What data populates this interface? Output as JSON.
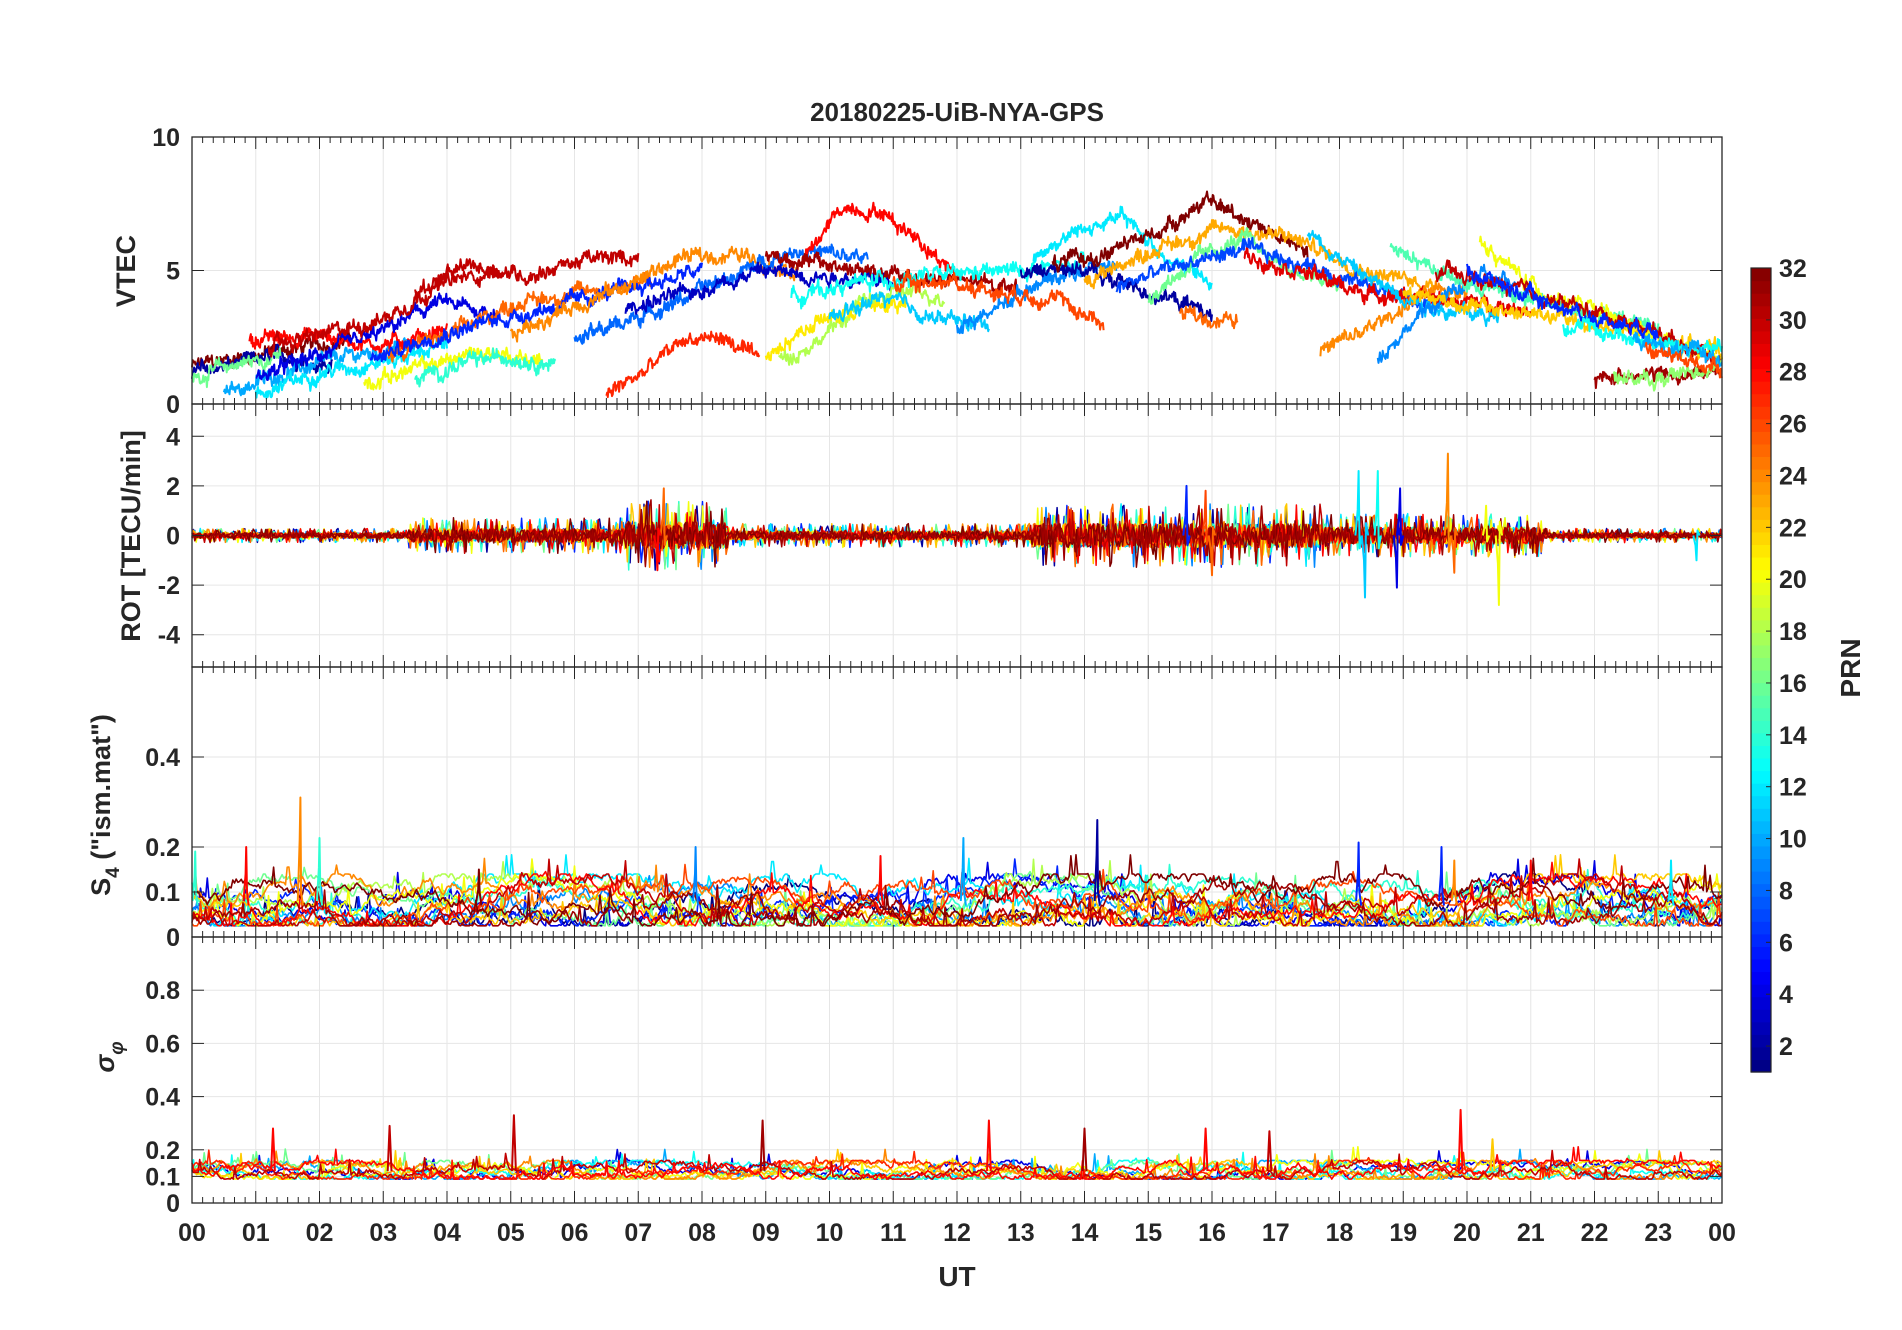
{
  "chart_data": {
    "type": "line",
    "title": "20180225-UiB-NYA-GPS",
    "xlabel": "UT",
    "x_tick_labels": [
      "00",
      "01",
      "02",
      "03",
      "04",
      "05",
      "06",
      "07",
      "08",
      "09",
      "10",
      "11",
      "12",
      "13",
      "14",
      "15",
      "16",
      "17",
      "18",
      "19",
      "20",
      "21",
      "22",
      "23",
      "00"
    ],
    "x_range_hours": [
      0,
      24
    ],
    "panels": [
      {
        "id": "vtec",
        "ylabel": "VTEC",
        "ylim": [
          0,
          10
        ],
        "yticks": [
          0,
          5,
          10
        ],
        "ytick_labels": [
          "0",
          "5",
          "10"
        ]
      },
      {
        "id": "rot",
        "ylabel": "ROT [TECU/min]",
        "ylim": [
          -5.3,
          5.3
        ],
        "yticks": [
          -4,
          -2,
          0,
          2,
          4
        ],
        "ytick_labels": [
          "-4",
          "-2",
          "0",
          "2",
          "4"
        ]
      },
      {
        "id": "s4",
        "ylabel_main": "S",
        "ylabel_sub": "4",
        "ylabel_rest": " (\"ism.mat\")",
        "ylim": [
          0,
          0.6
        ],
        "yticks": [
          0,
          0.1,
          0.2,
          0.4
        ],
        "ytick_labels": [
          "0",
          "0.1",
          "0.2",
          "0.4"
        ]
      },
      {
        "id": "sigma",
        "ylabel_main": "σ",
        "ylabel_sub": "φ",
        "ylim": [
          0,
          1
        ],
        "yticks": [
          0,
          0.1,
          0.2,
          0.4,
          0.6,
          0.8
        ],
        "ytick_labels": [
          "0",
          "0.1",
          "0.2",
          "0.4",
          "0.6",
          "0.8"
        ]
      }
    ],
    "colorbar": {
      "label": "PRN",
      "range": [
        1,
        32
      ],
      "colormap": "jet",
      "tick_values": [
        2,
        4,
        6,
        8,
        10,
        12,
        14,
        16,
        18,
        20,
        22,
        24,
        26,
        28,
        30,
        32
      ],
      "tick_labels": [
        "2",
        "4",
        "6",
        "8",
        "10",
        "12",
        "14",
        "16",
        "18",
        "20",
        "22",
        "24",
        "26",
        "28",
        "30",
        "32"
      ]
    },
    "series_note": "One line per GPS satellite (PRN 1-32) colored by PRN",
    "vtec_series": [
      {
        "prn": 32,
        "start": 0.0,
        "end": 2.5,
        "level": [
          1.4,
          1.8,
          2.1,
          2.4
        ]
      },
      {
        "prn": 2,
        "start": 0.0,
        "end": 2.2,
        "level": [
          1.2,
          1.5,
          1.8,
          1.4
        ]
      },
      {
        "prn": 16,
        "start": 0.0,
        "end": 1.4,
        "level": [
          1.0,
          1.5,
          1.8
        ]
      },
      {
        "prn": 10,
        "start": 0.5,
        "end": 3.5,
        "level": [
          0.4,
          1.2,
          1.8,
          2.2
        ]
      },
      {
        "prn": 28,
        "start": 0.9,
        "end": 4.0,
        "level": [
          2.4,
          2.6,
          2.2,
          2.8
        ]
      },
      {
        "prn": 4,
        "start": 1.0,
        "end": 4.8,
        "level": [
          1.0,
          1.8,
          2.6,
          3.8,
          3.4
        ]
      },
      {
        "prn": 12,
        "start": 1.0,
        "end": 4.0,
        "level": [
          0.3,
          1.2,
          1.6,
          2.2
        ]
      },
      {
        "prn": 30,
        "start": 1.2,
        "end": 4.8,
        "level": [
          2.2,
          2.6,
          3.2,
          4.5,
          5.0
        ]
      },
      {
        "prn": 30,
        "start": 3.5,
        "end": 7.0,
        "level": [
          4.2,
          5.2,
          4.8,
          5.4,
          5.5
        ]
      },
      {
        "prn": 20,
        "start": 2.7,
        "end": 5.5,
        "level": [
          0.8,
          1.4,
          2.0,
          1.6
        ]
      },
      {
        "prn": 14,
        "start": 3.5,
        "end": 5.7,
        "level": [
          0.9,
          1.5,
          1.8,
          1.5
        ]
      },
      {
        "prn": 25,
        "start": 3.0,
        "end": 7.2,
        "level": [
          1.8,
          2.6,
          3.8,
          4.2,
          4.6
        ]
      },
      {
        "prn": 6,
        "start": 2.8,
        "end": 8.0,
        "level": [
          1.6,
          2.6,
          3.2,
          3.8,
          4.4,
          5.0
        ]
      },
      {
        "prn": 27,
        "start": 6.5,
        "end": 8.9,
        "level": [
          0.4,
          1.2,
          2.4,
          2.5,
          1.6
        ]
      },
      {
        "prn": 24,
        "start": 5.0,
        "end": 9.5,
        "level": [
          2.6,
          3.6,
          4.4,
          5.5,
          5.6,
          5.0
        ]
      },
      {
        "prn": 8,
        "start": 6.0,
        "end": 10.6,
        "level": [
          2.4,
          3.4,
          4.6,
          5.8,
          5.4
        ]
      },
      {
        "prn": 3,
        "start": 6.8,
        "end": 11.0,
        "level": [
          3.6,
          4.2,
          5.0,
          4.8,
          4.6
        ]
      },
      {
        "prn": 18,
        "start": 9.2,
        "end": 11.8,
        "level": [
          1.6,
          2.4,
          3.8,
          4.2,
          4.0
        ]
      },
      {
        "prn": 21,
        "start": 9.0,
        "end": 11.2,
        "level": [
          1.8,
          3.0,
          3.6,
          3.8
        ]
      },
      {
        "prn": 28,
        "start": 9.6,
        "end": 12.0,
        "level": [
          5.4,
          7.4,
          7.2,
          6.2,
          4.8
        ]
      },
      {
        "prn": 31,
        "start": 9.0,
        "end": 13.0,
        "level": [
          5.6,
          5.2,
          4.8,
          4.6,
          4.4
        ]
      },
      {
        "prn": 13,
        "start": 9.4,
        "end": 14.0,
        "level": [
          4.0,
          4.6,
          4.8,
          5.0,
          5.2
        ]
      },
      {
        "prn": 11,
        "start": 10.0,
        "end": 12.5,
        "level": [
          3.2,
          4.0,
          3.2,
          3.0
        ]
      },
      {
        "prn": 9,
        "start": 12.0,
        "end": 14.5,
        "level": [
          2.8,
          3.6,
          4.6,
          5.0,
          5.2
        ]
      },
      {
        "prn": 26,
        "start": 11.0,
        "end": 14.3,
        "level": [
          4.4,
          4.6,
          4.2,
          4.0,
          3.0
        ]
      },
      {
        "prn": 12,
        "start": 13.2,
        "end": 16.0,
        "level": [
          5.5,
          6.5,
          7.0,
          5.5,
          4.5
        ]
      },
      {
        "prn": 2,
        "start": 13.0,
        "end": 16.0,
        "level": [
          4.8,
          5.2,
          4.6,
          4.0,
          3.4
        ]
      },
      {
        "prn": 32,
        "start": 13.5,
        "end": 17.5,
        "level": [
          5.2,
          5.6,
          6.4,
          7.6,
          6.8,
          5.6
        ]
      },
      {
        "prn": 23,
        "start": 14.0,
        "end": 19.5,
        "level": [
          4.6,
          5.8,
          6.6,
          6.2,
          5.0,
          4.4
        ]
      },
      {
        "prn": 16,
        "start": 15.0,
        "end": 18.0,
        "level": [
          4.0,
          5.4,
          6.2,
          5.0,
          4.4
        ]
      },
      {
        "prn": 7,
        "start": 14.5,
        "end": 19.5,
        "level": [
          4.4,
          5.2,
          5.8,
          5.2,
          4.4,
          3.6
        ]
      },
      {
        "prn": 25,
        "start": 15.5,
        "end": 16.4,
        "level": [
          3.4,
          3.2,
          3.1
        ]
      },
      {
        "prn": 29,
        "start": 16.5,
        "end": 21.0,
        "level": [
          5.6,
          5.0,
          4.2,
          4.0,
          3.8,
          3.6
        ]
      },
      {
        "prn": 24,
        "start": 17.7,
        "end": 20.0,
        "level": [
          2.0,
          2.8,
          4.0,
          4.4
        ]
      },
      {
        "prn": 11,
        "start": 17.5,
        "end": 20.5,
        "level": [
          6.4,
          4.6,
          3.6,
          3.2
        ]
      },
      {
        "prn": 9,
        "start": 18.6,
        "end": 21.0,
        "level": [
          1.8,
          3.6,
          4.8,
          4.2
        ]
      },
      {
        "prn": 15,
        "start": 18.8,
        "end": 23.0,
        "level": [
          6.0,
          4.6,
          4.0,
          3.4,
          3.0
        ]
      },
      {
        "prn": 22,
        "start": 19.0,
        "end": 24.0,
        "level": [
          4.2,
          3.6,
          3.2,
          2.6,
          2.0
        ]
      },
      {
        "prn": 20,
        "start": 20.2,
        "end": 24.0,
        "level": [
          6.0,
          4.2,
          3.4,
          2.4,
          1.6
        ]
      },
      {
        "prn": 30,
        "start": 19.5,
        "end": 24.0,
        "level": [
          5.0,
          4.4,
          3.6,
          2.8,
          1.6
        ]
      },
      {
        "prn": 6,
        "start": 20.0,
        "end": 23.0,
        "level": [
          5.0,
          4.0,
          3.2,
          2.8
        ]
      },
      {
        "prn": 13,
        "start": 21.5,
        "end": 24.0,
        "level": [
          3.0,
          2.6,
          2.2,
          2.0
        ]
      },
      {
        "prn": 31,
        "start": 22.0,
        "end": 24.0,
        "level": [
          0.9,
          1.2,
          1.0,
          1.3
        ]
      },
      {
        "prn": 17,
        "start": 22.3,
        "end": 24.0,
        "level": [
          1.2,
          0.8,
          1.2,
          1.5
        ]
      },
      {
        "prn": 10,
        "start": 22.6,
        "end": 24.0,
        "level": [
          2.4,
          2.0,
          1.8
        ]
      },
      {
        "prn": 26,
        "start": 22.8,
        "end": 24.0,
        "level": [
          2.0,
          1.6,
          1.4
        ]
      }
    ],
    "rot_activity": [
      {
        "start": 0.0,
        "end": 3.4,
        "amp": 0.18
      },
      {
        "start": 3.4,
        "end": 6.8,
        "amp": 0.45
      },
      {
        "start": 6.8,
        "end": 8.4,
        "amp": 0.9
      },
      {
        "start": 8.4,
        "end": 13.2,
        "amp": 0.3
      },
      {
        "start": 13.2,
        "end": 17.8,
        "amp": 0.8
      },
      {
        "start": 17.8,
        "end": 21.2,
        "amp": 0.55
      },
      {
        "start": 21.2,
        "end": 24.0,
        "amp": 0.18
      }
    ],
    "rot_spikes": [
      {
        "t": 7.4,
        "value": 1.9,
        "prn": 25
      },
      {
        "t": 7.3,
        "value": -1.4,
        "prn": 28
      },
      {
        "t": 15.6,
        "value": 2.0,
        "prn": 6
      },
      {
        "t": 15.9,
        "value": 1.8,
        "prn": 26
      },
      {
        "t": 16.0,
        "value": -1.6,
        "prn": 25
      },
      {
        "t": 18.3,
        "value": 2.6,
        "prn": 12
      },
      {
        "t": 18.4,
        "value": -2.5,
        "prn": 11
      },
      {
        "t": 18.6,
        "value": 2.6,
        "prn": 13
      },
      {
        "t": 18.9,
        "value": -2.1,
        "prn": 4
      },
      {
        "t": 18.95,
        "value": 1.9,
        "prn": 4
      },
      {
        "t": 19.7,
        "value": 3.3,
        "prn": 24
      },
      {
        "t": 19.8,
        "value": -1.5,
        "prn": 25
      },
      {
        "t": 20.3,
        "value": 1.2,
        "prn": 20
      },
      {
        "t": 20.5,
        "value": -2.8,
        "prn": 20
      },
      {
        "t": 23.6,
        "value": -1.0,
        "prn": 12
      }
    ],
    "s4_baseline": {
      "low": 0.03,
      "high": 0.1
    },
    "s4_spikes": [
      {
        "t": 0.05,
        "value": 0.19,
        "prn": 14
      },
      {
        "t": 0.85,
        "value": 0.2,
        "prn": 28
      },
      {
        "t": 1.7,
        "value": 0.31,
        "prn": 24
      },
      {
        "t": 2.0,
        "value": 0.22,
        "prn": 14
      },
      {
        "t": 4.5,
        "value": 0.15,
        "prn": 32
      },
      {
        "t": 7.9,
        "value": 0.2,
        "prn": 9
      },
      {
        "t": 10.8,
        "value": 0.18,
        "prn": 28
      },
      {
        "t": 12.1,
        "value": 0.22,
        "prn": 10
      },
      {
        "t": 14.2,
        "value": 0.26,
        "prn": 2
      },
      {
        "t": 18.3,
        "value": 0.21,
        "prn": 6
      },
      {
        "t": 19.6,
        "value": 0.2,
        "prn": 6
      },
      {
        "t": 19.8,
        "value": 0.17,
        "prn": 24
      },
      {
        "t": 21.0,
        "value": 0.17,
        "prn": 28
      },
      {
        "t": 23.2,
        "value": 0.17,
        "prn": 12
      }
    ],
    "sigma_baseline": {
      "low": 0.09,
      "high": 0.16
    },
    "sigma_spikes": [
      {
        "t": 1.27,
        "value": 0.28,
        "prn": 28
      },
      {
        "t": 3.1,
        "value": 0.29,
        "prn": 30
      },
      {
        "t": 5.05,
        "value": 0.33,
        "prn": 30
      },
      {
        "t": 8.95,
        "value": 0.31,
        "prn": 31
      },
      {
        "t": 12.5,
        "value": 0.31,
        "prn": 28
      },
      {
        "t": 14.0,
        "value": 0.28,
        "prn": 31
      },
      {
        "t": 15.9,
        "value": 0.28,
        "prn": 28
      },
      {
        "t": 16.9,
        "value": 0.27,
        "prn": 30
      },
      {
        "t": 19.9,
        "value": 0.35,
        "prn": 28
      },
      {
        "t": 20.4,
        "value": 0.24,
        "prn": 22
      }
    ]
  }
}
